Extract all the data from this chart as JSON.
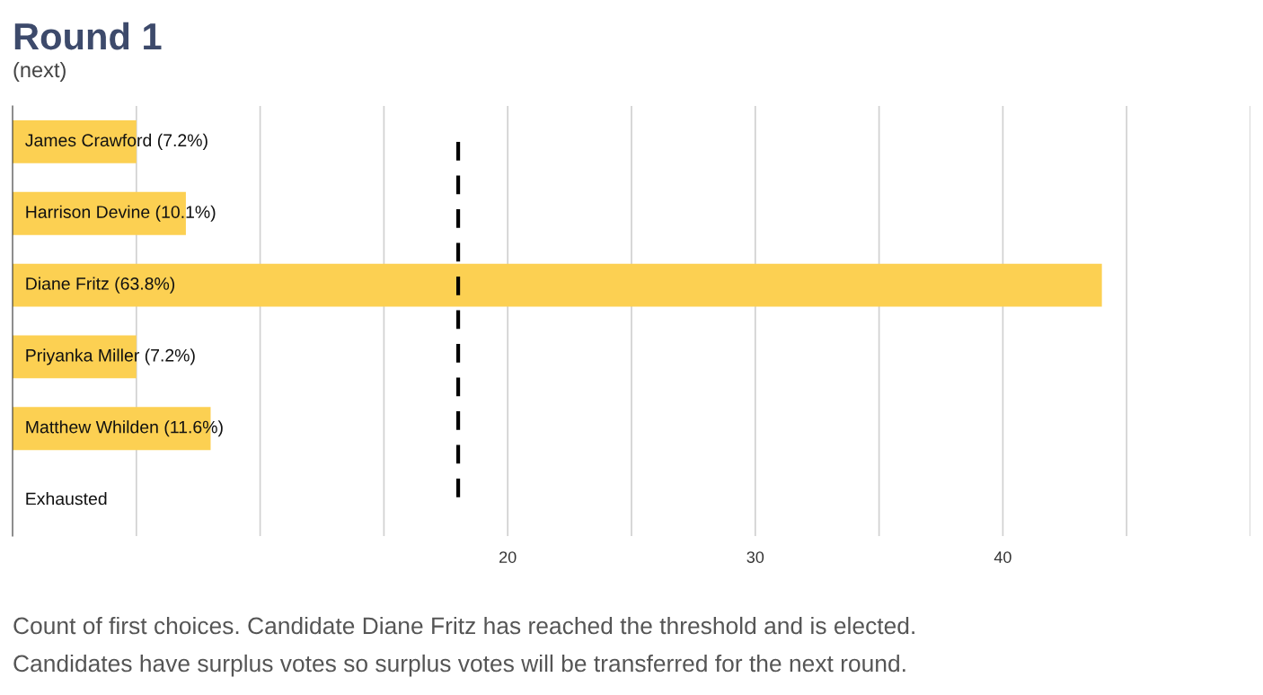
{
  "chart_data": {
    "type": "bar",
    "orientation": "horizontal",
    "title": "Round 1",
    "subtitle": "(next)",
    "categories": [
      "James Crawford (7.2%)",
      "Harrison Devine (10.1%)",
      "Diane Fritz (63.8%)",
      "Priyanka Miller (7.2%)",
      "Matthew Whilden (11.6%)",
      "Exhausted"
    ],
    "values": [
      5,
      7,
      44,
      5,
      8,
      0
    ],
    "color": "#fcd052",
    "xlim": [
      0,
      50
    ],
    "xticks": [
      {
        "value": 5,
        "label": null
      },
      {
        "value": 10,
        "label": null
      },
      {
        "value": 15,
        "label": null
      },
      20,
      {
        "value": 25,
        "label": null
      },
      30,
      {
        "value": 35,
        "label": null
      },
      40,
      {
        "value": 45,
        "label": null
      },
      {
        "value": 50,
        "label": null
      }
    ],
    "grid": "x",
    "ref_lines": [
      {
        "axis": "x",
        "value": 18,
        "line_style": "dashed",
        "color": "#000000"
      }
    ],
    "annotations": [
      "Count of first choices. Candidate Diane Fritz has reached the threshold and is elected.",
      "Candidates have surplus votes so surplus votes will be transferred for the next round."
    ]
  }
}
